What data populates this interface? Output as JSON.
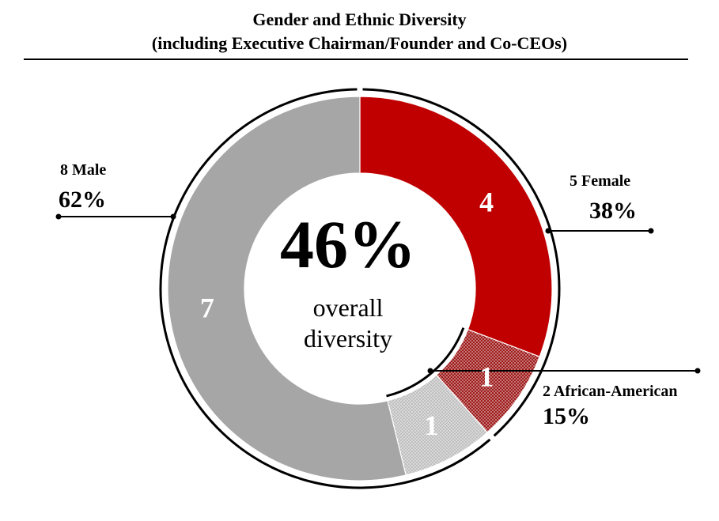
{
  "title": {
    "line1": "Gender and Ethnic Diversity",
    "line2": "(including Executive Chairman/Founder and Co-CEOs)"
  },
  "center": {
    "value": "46%",
    "line1": "overall",
    "line2": "diversity"
  },
  "groups": {
    "female": {
      "label": "5 Female",
      "percent": "38%"
    },
    "male": {
      "label": "8 Male",
      "percent": "62%"
    },
    "african_american": {
      "label": "2 African-American",
      "percent": "15%"
    }
  },
  "colors": {
    "female": "#c00000",
    "female_african_american": "#9e1a1a",
    "male_african_american": "#bfbfbf",
    "male": "#a6a6a6"
  },
  "chart_data": {
    "type": "pie",
    "title": "Gender and Ethnic Diversity (including Executive Chairman/Founder and Co-CEOs)",
    "slices": [
      {
        "label": "4",
        "value": 4,
        "gender": "Female",
        "african_american": false,
        "pattern": "solid"
      },
      {
        "label": "1",
        "value": 1,
        "gender": "Female",
        "african_american": true,
        "pattern": "dotted"
      },
      {
        "label": "1",
        "value": 1,
        "gender": "Male",
        "african_american": true,
        "pattern": "dotted"
      },
      {
        "label": "7",
        "value": 7,
        "gender": "Male",
        "african_american": false,
        "pattern": "solid"
      }
    ],
    "total": 13,
    "donut": true,
    "legend": "none"
  }
}
